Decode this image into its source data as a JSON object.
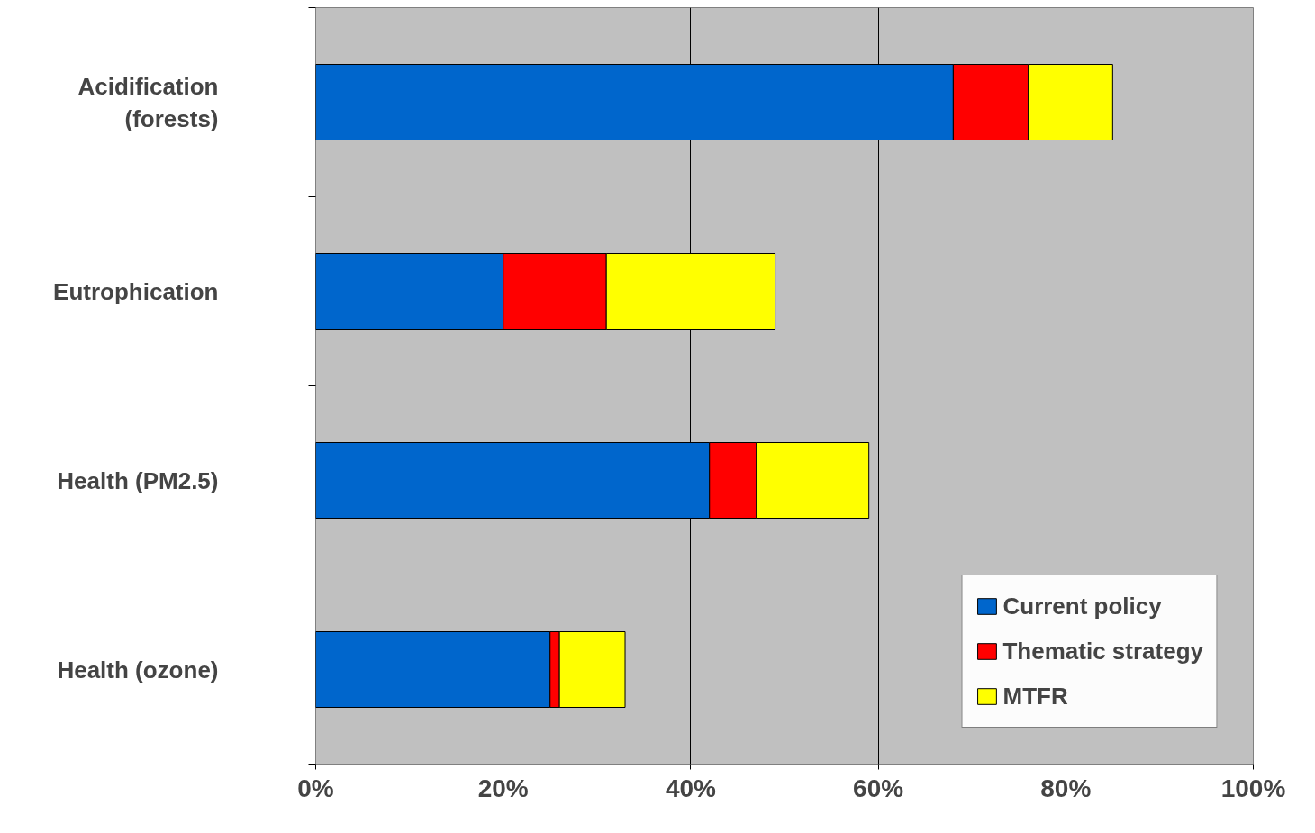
{
  "chart_data": {
    "type": "bar",
    "orientation": "horizontal",
    "stacked": true,
    "categories": [
      "Acidification\n(forests)",
      "Eutrophication",
      "Health (PM2.5)",
      "Health (ozone)"
    ],
    "series": [
      {
        "name": "Current policy",
        "color": "#0066cc",
        "values": [
          68,
          20,
          42,
          25
        ]
      },
      {
        "name": "Thematic strategy",
        "color": "#ff0000",
        "values": [
          8,
          11,
          5,
          1
        ]
      },
      {
        "name": "MTFR",
        "color": "#ffff00",
        "values": [
          9,
          18,
          12,
          7
        ]
      }
    ],
    "xlim": [
      0,
      100
    ],
    "xticks": [
      {
        "value": 0,
        "label": "0%"
      },
      {
        "value": 20,
        "label": "20%"
      },
      {
        "value": 40,
        "label": "40%"
      },
      {
        "value": 60,
        "label": "60%"
      },
      {
        "value": 80,
        "label": "80%"
      },
      {
        "value": 100,
        "label": "100%"
      }
    ],
    "grid": "x",
    "legend": "bottom right"
  }
}
